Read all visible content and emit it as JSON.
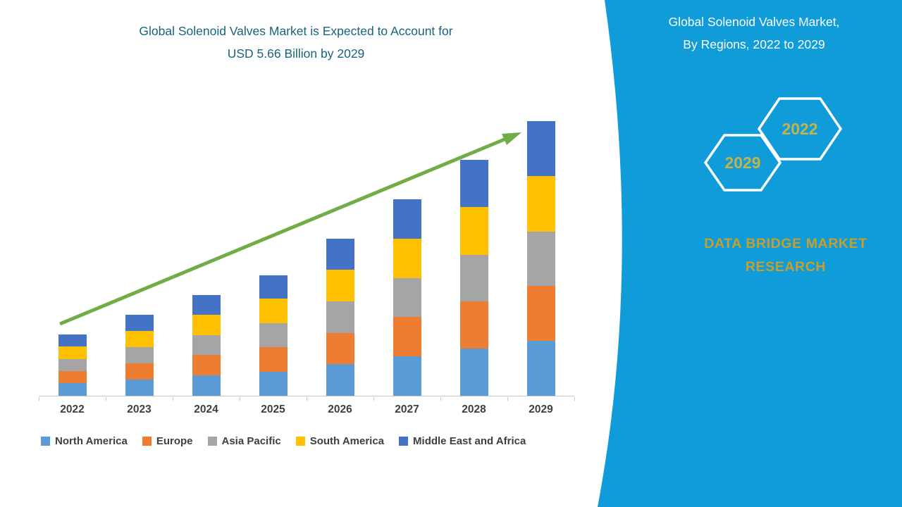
{
  "left": {
    "title_line1": "Global Solenoid Valves Market is Expected to Account for",
    "title_line2": "USD 5.66 Billion by 2029",
    "title_color": "#17637C"
  },
  "panel": {
    "bg_color": "#109CD9",
    "title_line1": "Global Solenoid Valves Market,",
    "title_line2": "By Regions, 2022 to 2029",
    "hexagons": [
      {
        "label": "2029"
      },
      {
        "label": "2022"
      }
    ],
    "hexagon_label_color": "#C2B44C",
    "brand_line1": "DATA BRIDGE MARKET",
    "brand_line2": "RESEARCH",
    "brand_color": "#C79F2C"
  },
  "chart_data": {
    "type": "bar",
    "stacked": true,
    "title": "Global Solenoid Valves Market is Expected to Account for USD 5.66 Billion by 2029",
    "xlabel": "",
    "ylabel": "",
    "units": "USD Billion",
    "ylim": [
      0,
      6
    ],
    "grid": false,
    "legend_position": "bottom",
    "categories": [
      "2022",
      "2023",
      "2024",
      "2025",
      "2026",
      "2027",
      "2028",
      "2029"
    ],
    "series": [
      {
        "name": "North America",
        "color": "#5B9BD5",
        "values": [
          0.26,
          0.34,
          0.42,
          0.5,
          0.65,
          0.81,
          0.97,
          1.13
        ]
      },
      {
        "name": "Europe",
        "color": "#ED7D31",
        "values": [
          0.25,
          0.33,
          0.42,
          0.5,
          0.65,
          0.81,
          0.97,
          1.13
        ]
      },
      {
        "name": "Asia Pacific",
        "color": "#A5A5A5",
        "values": [
          0.25,
          0.33,
          0.41,
          0.5,
          0.65,
          0.81,
          0.97,
          1.13
        ]
      },
      {
        "name": "South America",
        "color": "#FFC000",
        "values": [
          0.26,
          0.34,
          0.42,
          0.5,
          0.65,
          0.81,
          0.98,
          1.14
        ]
      },
      {
        "name": "Middle East and Africa",
        "color": "#4472C4",
        "values": [
          0.25,
          0.33,
          0.41,
          0.49,
          0.65,
          0.81,
          0.97,
          1.13
        ]
      }
    ],
    "totals": [
      1.27,
      1.67,
      2.08,
      2.49,
      3.25,
      4.05,
      4.86,
      5.66
    ],
    "annotations": [
      {
        "type": "arrow",
        "meaning": "upward growth trend",
        "color": "#70AD47"
      }
    ]
  }
}
